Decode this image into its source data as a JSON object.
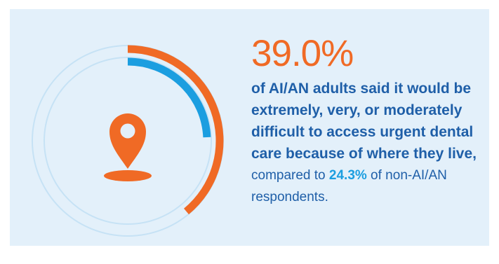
{
  "chart_data": {
    "type": "radial-bar",
    "series": [
      {
        "group": "AI/AN adults",
        "value": 39.0,
        "unit": "%",
        "color": "#f06a25"
      },
      {
        "group": "non-AI/AN respondents",
        "value": 24.3,
        "unit": "%",
        "color": "#1b9ee0"
      }
    ],
    "max": 100,
    "track_color": "#c6e2f5"
  },
  "headline": "39.0%",
  "statement": "of AI/AN adults said it would be extremely, very, or moderately difficult to access urgent dental care because of where they live,",
  "comparison_prefix": "compared to ",
  "comparison_value": "24.3%",
  "comparison_suffix": " of non-AI/AN respondents.",
  "icon": "location-pin-icon",
  "colors": {
    "background": "#e3f0fa",
    "orange": "#f06a25",
    "blue": "#1b9ee0",
    "navy": "#1f5fa8"
  }
}
